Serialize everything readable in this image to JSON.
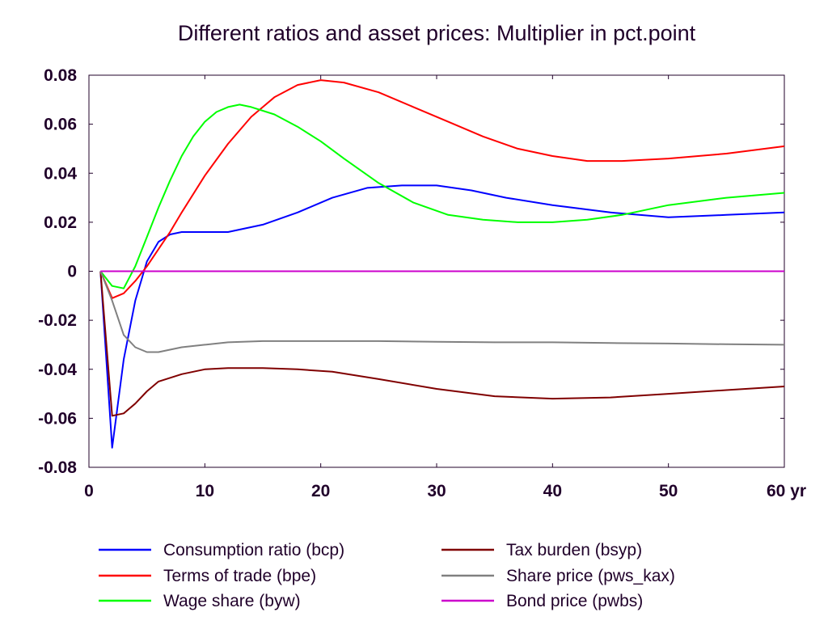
{
  "chart_data": {
    "type": "line",
    "title": "Different ratios and asset prices: Multiplier in pct.point",
    "x_unit_label": "yr",
    "xlim": [
      0,
      60
    ],
    "ylim": [
      -0.08,
      0.08
    ],
    "x_ticks": [
      0,
      10,
      20,
      30,
      40,
      50,
      60
    ],
    "y_ticks": [
      0.08,
      0.06,
      0.04,
      0.02,
      0,
      -0.02,
      -0.04,
      -0.06,
      -0.08
    ],
    "y_tick_labels": [
      "0.08",
      "0.06",
      "0.04",
      "0.02",
      "0",
      "-0.02",
      "-0.04",
      "-0.06",
      "-0.08"
    ],
    "x_tick_labels": [
      "0",
      "10",
      "20",
      "30",
      "40",
      "50",
      "60 yr"
    ],
    "grid": false,
    "legend_position": "bottom",
    "series": [
      {
        "name": "Consumption ratio (bcp)",
        "color": "#0000ff",
        "x": [
          1,
          2,
          3,
          4,
          5,
          6,
          7,
          8,
          10,
          12,
          15,
          18,
          21,
          24,
          27,
          30,
          33,
          36,
          40,
          45,
          50,
          55,
          60
        ],
        "y": [
          0,
          -0.072,
          -0.036,
          -0.012,
          0.004,
          0.012,
          0.015,
          0.016,
          0.016,
          0.016,
          0.019,
          0.024,
          0.03,
          0.034,
          0.035,
          0.035,
          0.033,
          0.03,
          0.027,
          0.024,
          0.022,
          0.023,
          0.024
        ]
      },
      {
        "name": "Terms of trade (bpe)",
        "color": "#ff0000",
        "x": [
          1,
          2,
          3,
          4,
          5,
          6,
          7,
          8,
          10,
          12,
          14,
          16,
          18,
          20,
          22,
          25,
          28,
          31,
          34,
          37,
          40,
          43,
          46,
          50,
          55,
          60
        ],
        "y": [
          0,
          -0.011,
          -0.009,
          -0.004,
          0.002,
          0.009,
          0.016,
          0.024,
          0.039,
          0.052,
          0.063,
          0.071,
          0.076,
          0.078,
          0.077,
          0.073,
          0.067,
          0.061,
          0.055,
          0.05,
          0.047,
          0.045,
          0.045,
          0.046,
          0.048,
          0.051
        ]
      },
      {
        "name": "Wage share (byw)",
        "color": "#00ff00",
        "x": [
          1,
          2,
          3,
          4,
          5,
          6,
          7,
          8,
          9,
          10,
          11,
          12,
          13,
          14,
          16,
          18,
          20,
          22,
          25,
          28,
          31,
          34,
          37,
          40,
          43,
          46,
          50,
          55,
          60
        ],
        "y": [
          0,
          -0.006,
          -0.007,
          0.002,
          0.014,
          0.026,
          0.037,
          0.047,
          0.055,
          0.061,
          0.065,
          0.067,
          0.068,
          0.067,
          0.064,
          0.059,
          0.053,
          0.046,
          0.036,
          0.028,
          0.023,
          0.021,
          0.02,
          0.02,
          0.021,
          0.023,
          0.027,
          0.03,
          0.032
        ]
      },
      {
        "name": "Tax burden (bsyp)",
        "color": "#800000",
        "x": [
          1,
          2,
          3,
          4,
          5,
          6,
          8,
          10,
          12,
          15,
          18,
          21,
          25,
          30,
          35,
          40,
          45,
          50,
          55,
          60
        ],
        "y": [
          0,
          -0.059,
          -0.058,
          -0.054,
          -0.049,
          -0.045,
          -0.042,
          -0.04,
          -0.0395,
          -0.0395,
          -0.04,
          -0.041,
          -0.044,
          -0.048,
          -0.051,
          -0.052,
          -0.0515,
          -0.05,
          -0.0485,
          -0.047
        ]
      },
      {
        "name": "Share price (pws_kax)",
        "color": "#808080",
        "x": [
          1,
          2,
          3,
          4,
          5,
          6,
          8,
          10,
          12,
          15,
          20,
          25,
          30,
          35,
          40,
          45,
          50,
          55,
          60
        ],
        "y": [
          0,
          -0.012,
          -0.026,
          -0.031,
          -0.033,
          -0.033,
          -0.031,
          -0.03,
          -0.029,
          -0.0285,
          -0.0285,
          -0.0285,
          -0.0288,
          -0.029,
          -0.029,
          -0.0293,
          -0.0295,
          -0.0298,
          -0.03
        ]
      },
      {
        "name": "Bond price (pwbs)",
        "color": "#cc00cc",
        "x": [
          1,
          60
        ],
        "y": [
          0,
          0
        ]
      }
    ]
  }
}
